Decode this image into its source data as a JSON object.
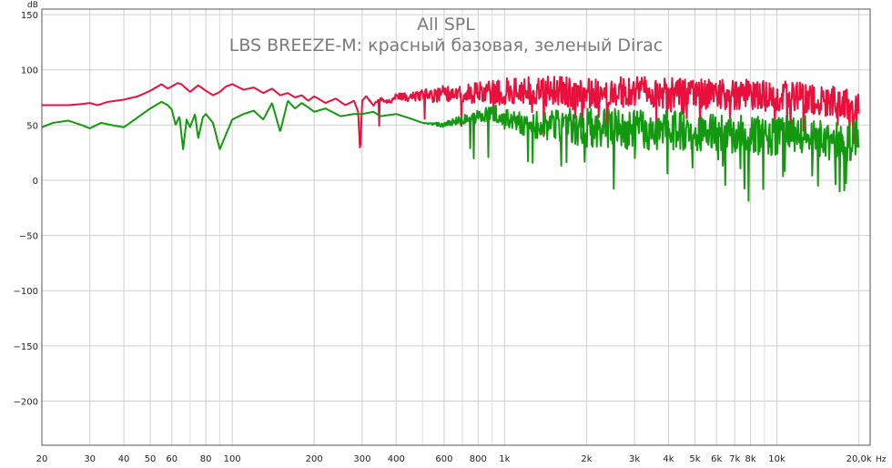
{
  "chart_data": {
    "type": "line",
    "title": "All SPL",
    "subtitle": "LBS BREEZE-M: красный базовая, зеленый Dirac",
    "ylabel": "dB",
    "xlabel": "Hz",
    "x_scale": "log",
    "xlim": [
      20,
      22000
    ],
    "ylim": [
      -240,
      155
    ],
    "grid": true,
    "x_ticks": [
      {
        "v": 20,
        "label": "20"
      },
      {
        "v": 30,
        "label": "30"
      },
      {
        "v": 40,
        "label": "40"
      },
      {
        "v": 50,
        "label": "50"
      },
      {
        "v": 60,
        "label": "60"
      },
      {
        "v": 80,
        "label": "80"
      },
      {
        "v": 100,
        "label": "100"
      },
      {
        "v": 200,
        "label": "200"
      },
      {
        "v": 300,
        "label": "300"
      },
      {
        "v": 400,
        "label": "400"
      },
      {
        "v": 600,
        "label": "600"
      },
      {
        "v": 800,
        "label": "800"
      },
      {
        "v": 1000,
        "label": "1k"
      },
      {
        "v": 2000,
        "label": "2k"
      },
      {
        "v": 3000,
        "label": "3k"
      },
      {
        "v": 4000,
        "label": "4k"
      },
      {
        "v": 5000,
        "label": "5k"
      },
      {
        "v": 6000,
        "label": "6k"
      },
      {
        "v": 7000,
        "label": "7k"
      },
      {
        "v": 8000,
        "label": "8k"
      },
      {
        "v": 10000,
        "label": "10k"
      },
      {
        "v": 20000,
        "label": "20,0k"
      }
    ],
    "x_minor_grid": [
      70,
      90,
      500,
      700,
      900,
      9000
    ],
    "y_ticks": [
      150,
      100,
      50,
      0,
      -50,
      -100,
      -150,
      -200
    ],
    "series": [
      {
        "name": "красный базовая",
        "color": "#e8103c",
        "x": [
          20,
          25,
          28,
          30,
          32,
          35,
          40,
          45,
          50,
          55,
          58,
          60,
          63,
          65,
          70,
          75,
          80,
          85,
          90,
          95,
          100,
          110,
          120,
          130,
          140,
          150,
          160,
          170,
          180,
          190,
          200,
          220,
          240,
          260,
          280,
          290,
          295,
          300,
          310,
          330,
          350,
          370,
          400,
          450,
          500,
          550,
          600,
          700,
          800,
          900,
          1000,
          1200,
          1500,
          2000,
          2500,
          3000,
          4000,
          5000,
          6000,
          7000,
          8000,
          10000,
          12000,
          15000,
          18000,
          20000
        ],
        "y": [
          68,
          68,
          69,
          70,
          68,
          71,
          73,
          76,
          81,
          87,
          83,
          85,
          88,
          87,
          80,
          86,
          81,
          77,
          80,
          85,
          87,
          82,
          84,
          79,
          83,
          77,
          79,
          75,
          77,
          72,
          76,
          70,
          74,
          68,
          72,
          62,
          25,
          72,
          76,
          68,
          74,
          70,
          76,
          75,
          78,
          76,
          79,
          78,
          80,
          79,
          80,
          80,
          80,
          79,
          79,
          80,
          79,
          79,
          78,
          78,
          77,
          76,
          75,
          72,
          70,
          64
        ],
        "noise_from": 300,
        "noise_amp": 14,
        "noise_spikes": -30
      },
      {
        "name": "зеленый Dirac",
        "color": "#12990f",
        "x": [
          20,
          22,
          25,
          28,
          30,
          33,
          36,
          40,
          45,
          50,
          55,
          58,
          60,
          62,
          64,
          66,
          68,
          70,
          73,
          75,
          78,
          80,
          85,
          90,
          100,
          110,
          120,
          130,
          140,
          150,
          160,
          170,
          180,
          190,
          200,
          220,
          250,
          280,
          300,
          330,
          350,
          400,
          450,
          500,
          600,
          700,
          800,
          900,
          1000,
          1200,
          1500,
          2000,
          2500,
          3000,
          4000,
          5000,
          6000,
          7000,
          8000,
          10000,
          12000,
          14000,
          16000,
          18000,
          20000
        ],
        "y": [
          48,
          52,
          54,
          50,
          47,
          52,
          50,
          48,
          57,
          65,
          71,
          68,
          64,
          50,
          58,
          28,
          55,
          48,
          60,
          38,
          57,
          60,
          52,
          28,
          55,
          60,
          63,
          55,
          70,
          44,
          72,
          65,
          70,
          66,
          62,
          65,
          58,
          60,
          60,
          62,
          58,
          60,
          56,
          52,
          50,
          55,
          58,
          62,
          55,
          50,
          50,
          48,
          47,
          46,
          45,
          45,
          44,
          42,
          40,
          40,
          42,
          38,
          36,
          34,
          40
        ],
        "noise_from": 500,
        "noise_amp": 18,
        "noise_spikes": -45
      }
    ]
  }
}
